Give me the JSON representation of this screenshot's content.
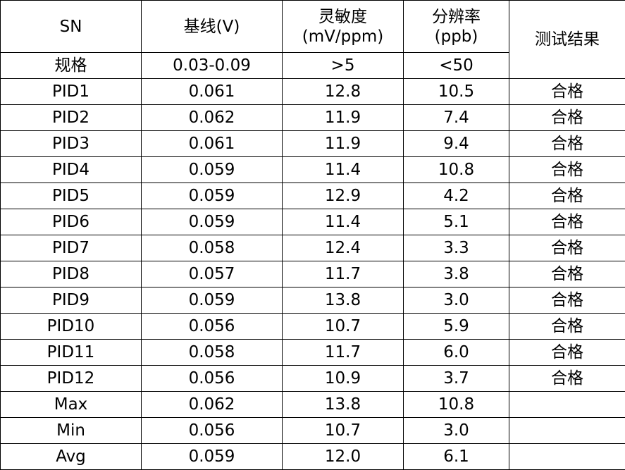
{
  "table": {
    "header": [
      [
        "SN"
      ],
      [
        "基线(V)"
      ],
      [
        "灵敏度",
        "(mV/ppm)"
      ],
      [
        "分辨率",
        "(ppb)"
      ],
      [
        "测试结果"
      ]
    ],
    "spec": [
      "规格",
      "0.03-0.09",
      ">5",
      "<50"
    ],
    "rows": [
      [
        "PID1",
        "0.061",
        "12.8",
        "10.5",
        "合格"
      ],
      [
        "PID2",
        "0.062",
        "11.9",
        "7.4",
        "合格"
      ],
      [
        "PID3",
        "0.061",
        "11.9",
        "9.4",
        "合格"
      ],
      [
        "PID4",
        "0.059",
        "11.4",
        "10.8",
        "合格"
      ],
      [
        "PID5",
        "0.059",
        "12.9",
        "4.2",
        "合格"
      ],
      [
        "PID6",
        "0.059",
        "11.4",
        "5.1",
        "合格"
      ],
      [
        "PID7",
        "0.058",
        "12.4",
        "3.3",
        "合格"
      ],
      [
        "PID8",
        "0.057",
        "11.7",
        "3.8",
        "合格"
      ],
      [
        "PID9",
        "0.059",
        "13.8",
        "3.0",
        "合格"
      ],
      [
        "PID10",
        "0.056",
        "10.7",
        "5.9",
        "合格"
      ],
      [
        "PID11",
        "0.058",
        "11.7",
        "6.0",
        "合格"
      ],
      [
        "PID12",
        "0.056",
        "10.9",
        "3.7",
        "合格"
      ],
      [
        "Max",
        "0.062",
        "13.8",
        "10.8"
      ],
      [
        "Min",
        "0.056",
        "10.7",
        "3.0"
      ],
      [
        "Avg",
        "0.059",
        "12.0",
        "6.1"
      ]
    ]
  }
}
